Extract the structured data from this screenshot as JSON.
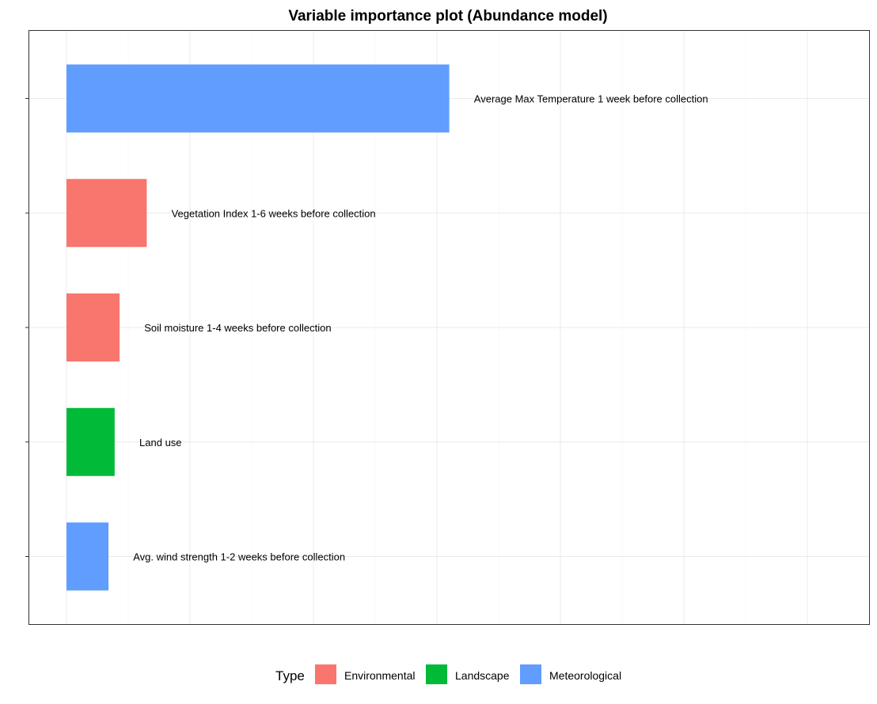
{
  "chart_data": {
    "type": "bar",
    "orientation": "horizontal",
    "title": "Variable importance plot (Abundance model)",
    "xlabel": "",
    "ylabel": "",
    "xlim": [
      0,
      6.25
    ],
    "grid": true,
    "categories": [
      "Average Max Temperature 1 week before collection",
      "Vegetation Index 1-6 weeks before collection",
      "Soil moisture 1-4 weeks before collection",
      "Land use",
      "Avg. wind strength 1-2 weeks before collection"
    ],
    "values": [
      3.1,
      0.65,
      0.43,
      0.39,
      0.34
    ],
    "types": [
      "Meteorological",
      "Environmental",
      "Environmental",
      "Landscape",
      "Meteorological"
    ],
    "legend": {
      "title": "Type",
      "position": "bottom",
      "entries": [
        {
          "name": "Environmental",
          "color": "#F8766D"
        },
        {
          "name": "Landscape",
          "color": "#00BA38"
        },
        {
          "name": "Meteorological",
          "color": "#619CFF"
        }
      ]
    }
  }
}
